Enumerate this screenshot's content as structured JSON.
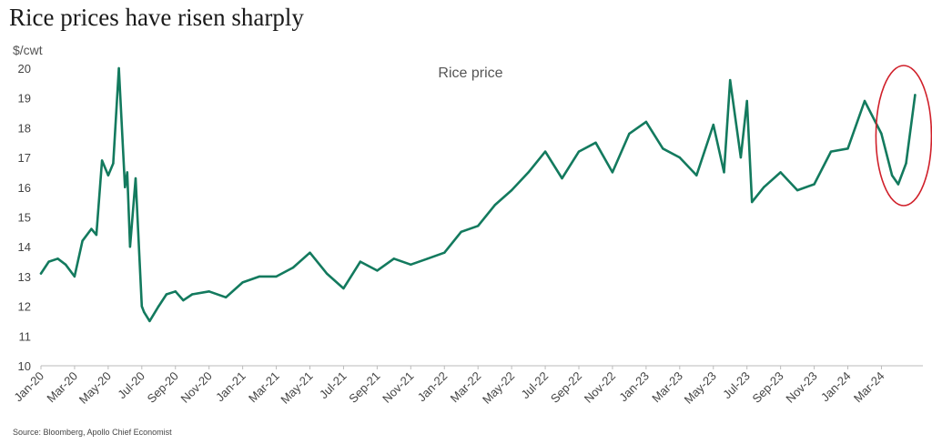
{
  "title": "Rice prices have risen sharply",
  "source": "Source: Bloomberg, Apollo Chief Economist",
  "chart_data": {
    "type": "line",
    "title": "Rice prices have risen sharply",
    "ylabel": "$/cwt",
    "xlabel": "",
    "ylim": [
      10,
      20
    ],
    "yticks": [
      "10",
      "11",
      "12",
      "13",
      "14",
      "15",
      "16",
      "17",
      "18",
      "19",
      "20"
    ],
    "xtick_labels": [
      "Jan-20",
      "Mar-20",
      "May-20",
      "Jul-20",
      "Sep-20",
      "Nov-20",
      "Jan-21",
      "Mar-21",
      "May-21",
      "Jul-21",
      "Sep-21",
      "Nov-21",
      "Jan-22",
      "Mar-22",
      "May-22",
      "Jul-22",
      "Sep-22",
      "Nov-22",
      "Jan-23",
      "Mar-23",
      "May-23",
      "Jul-23",
      "Sep-23",
      "Nov-23",
      "Jan-24",
      "Mar-24"
    ],
    "annotation": "Rice price",
    "highlight": {
      "shape": "ellipse",
      "color": "#d0202a",
      "x_range": [
        "2024-03",
        "2024-05"
      ]
    },
    "grid": false,
    "series": [
      {
        "color": "#137a5e",
        "x": [
          "2020-01",
          "2020-01-15",
          "2020-02",
          "2020-02-15",
          "2020-03",
          "2020-03-15",
          "2020-04",
          "2020-04-10",
          "2020-04-20",
          "2020-05",
          "2020-05-10",
          "2020-05-20",
          "2020-06",
          "2020-06-05",
          "2020-06-10",
          "2020-06-20",
          "2020-07",
          "2020-07-05",
          "2020-07-15",
          "2020-08",
          "2020-08-15",
          "2020-09",
          "2020-09-15",
          "2020-10",
          "2020-11",
          "2020-12",
          "2021-01",
          "2021-02",
          "2021-03",
          "2021-04",
          "2021-05",
          "2021-06",
          "2021-07",
          "2021-08",
          "2021-09",
          "2021-10",
          "2021-11",
          "2021-12",
          "2022-01",
          "2022-02",
          "2022-03",
          "2022-04",
          "2022-05",
          "2022-06",
          "2022-07",
          "2022-08",
          "2022-09",
          "2022-10",
          "2022-11",
          "2022-12",
          "2023-01",
          "2023-02",
          "2023-03",
          "2023-04",
          "2023-05",
          "2023-05-20",
          "2023-06",
          "2023-06-20",
          "2023-07",
          "2023-07-10",
          "2023-08",
          "2023-09",
          "2023-10",
          "2023-11",
          "2023-12",
          "2024-01",
          "2024-02",
          "2024-03",
          "2024-03-20",
          "2024-04",
          "2024-04-15",
          "2024-05"
        ],
        "values": [
          13.1,
          13.5,
          13.6,
          13.4,
          13.0,
          14.2,
          14.6,
          14.4,
          16.9,
          16.4,
          16.8,
          20.0,
          16.0,
          16.5,
          14.0,
          16.3,
          12.0,
          11.8,
          11.5,
          12.0,
          12.4,
          12.5,
          12.2,
          12.4,
          12.5,
          12.3,
          12.8,
          13.0,
          13.0,
          13.3,
          13.8,
          13.1,
          12.6,
          13.5,
          13.2,
          13.6,
          13.4,
          13.6,
          13.8,
          14.5,
          14.7,
          15.4,
          15.9,
          16.5,
          17.2,
          16.3,
          17.2,
          17.5,
          16.5,
          17.8,
          18.2,
          17.3,
          17.0,
          16.4,
          18.1,
          16.5,
          19.6,
          17.0,
          18.9,
          15.5,
          16.0,
          16.5,
          15.9,
          16.1,
          17.2,
          17.3,
          18.9,
          17.8,
          16.4,
          16.1,
          16.8,
          19.1
        ]
      }
    ]
  }
}
